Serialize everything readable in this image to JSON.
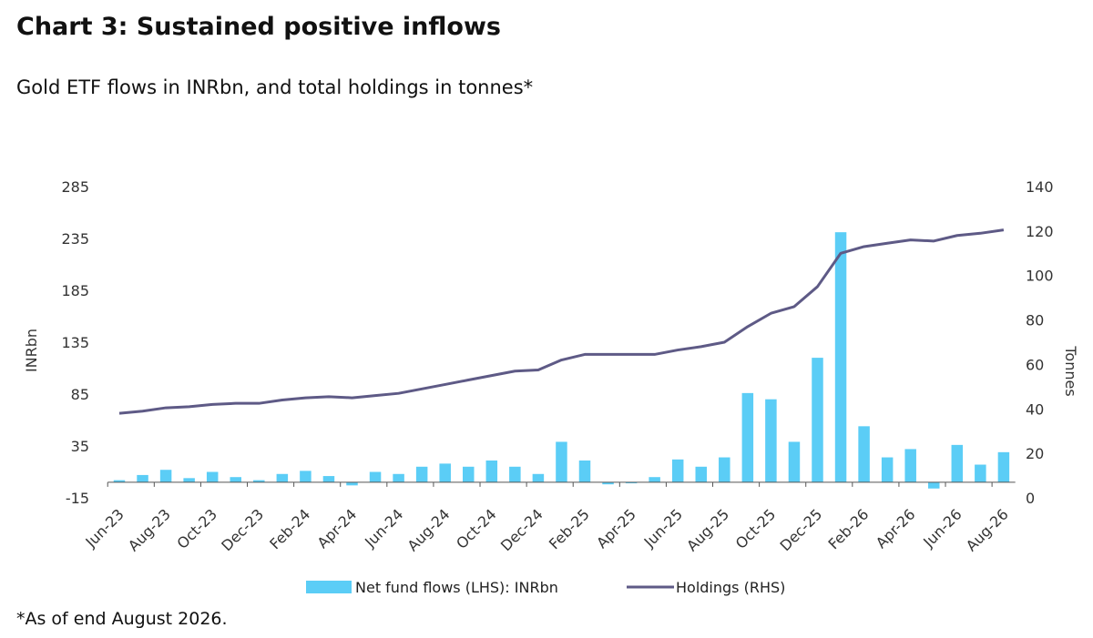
{
  "title": "Chart 3: Sustained positive inflows",
  "subtitle": "Gold ETF flows in INRbn, and total holdings in tonnes*",
  "footnote": "*As of end August 2026.",
  "colors": {
    "bars": "#5bcdf6",
    "line": "#5e5a86",
    "text": "#333333"
  },
  "chart_data": {
    "type": "bar",
    "ylabel": "INRbn",
    "y2label": "Tonnes",
    "ylim": [
      -15,
      285
    ],
    "y2lim": [
      0,
      140
    ],
    "yticks": [
      -15,
      35,
      85,
      135,
      185,
      235,
      285
    ],
    "y2ticks": [
      0,
      20,
      40,
      60,
      80,
      100,
      120,
      140
    ],
    "x_tick_labels": [
      "Jun-23",
      "Aug-23",
      "Oct-23",
      "Dec-23",
      "Feb-24",
      "Apr-24",
      "Jun-24",
      "Aug-24",
      "Oct-24",
      "Dec-24",
      "Feb-25",
      "Apr-25",
      "Jun-25",
      "Aug-25",
      "Oct-25",
      "Dec-25",
      "Feb-26",
      "Apr-26",
      "Jun-26",
      "Aug-26"
    ],
    "categories": [
      "Jun-23",
      "Jul-23",
      "Aug-23",
      "Sep-23",
      "Oct-23",
      "Nov-23",
      "Dec-23",
      "Jan-24",
      "Feb-24",
      "Mar-24",
      "Apr-24",
      "May-24",
      "Jun-24",
      "Jul-24",
      "Aug-24",
      "Sep-24",
      "Oct-24",
      "Nov-24",
      "Dec-24",
      "Jan-25",
      "Feb-25",
      "Mar-25",
      "Apr-25",
      "May-25",
      "Jun-25",
      "Jul-25",
      "Aug-25",
      "Sep-25",
      "Oct-25",
      "Nov-25",
      "Dec-25",
      "Jan-26",
      "Feb-26",
      "Mar-26",
      "Apr-26",
      "May-26",
      "Jun-26",
      "Jul-26",
      "Aug-26"
    ],
    "series": [
      {
        "name": "Net fund flows (LHS): INRbn",
        "type": "bar",
        "axis": "left",
        "values": [
          2,
          7,
          12,
          4,
          10,
          5,
          2,
          8,
          11,
          6,
          -3,
          10,
          8,
          15,
          18,
          15,
          21,
          15,
          8,
          39,
          21,
          -2,
          -1,
          5,
          22,
          15,
          24,
          86,
          80,
          39,
          120,
          241,
          54,
          24,
          32,
          -6,
          36,
          17,
          29
        ]
      },
      {
        "name": "Holdings (RHS)",
        "type": "line",
        "axis": "right",
        "values": [
          38,
          39,
          40.5,
          41,
          42,
          42.5,
          42.5,
          44,
          45,
          45.5,
          45,
          46,
          47,
          49,
          51,
          53,
          55,
          57,
          57.5,
          62,
          64.5,
          64.5,
          64.5,
          64.5,
          66.5,
          68,
          70,
          77,
          83,
          86,
          95,
          110,
          113,
          114.5,
          116,
          115.5,
          118,
          119,
          120.5
        ]
      }
    ],
    "legend_position": "bottom-center",
    "grid": false
  }
}
